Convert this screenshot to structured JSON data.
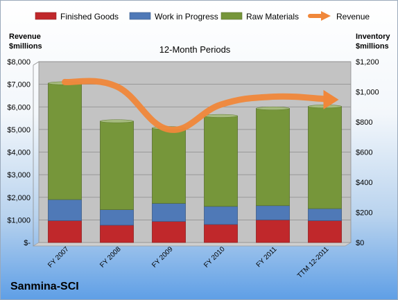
{
  "chart_data": {
    "type": "bar",
    "title": "12-Month Periods",
    "company": "Sanmina-SCI",
    "left_axis_title": [
      "Revenue",
      "$millions"
    ],
    "right_axis_title": [
      "Inventory",
      "$millions"
    ],
    "categories": [
      "FY 2007",
      "FY 2008",
      "FY 2009",
      "FY 2010",
      "FY 2011",
      "TTM 12-2011"
    ],
    "left_ylim": [
      0,
      8000
    ],
    "left_ticks": [
      0,
      1000,
      2000,
      3000,
      4000,
      5000,
      6000,
      7000,
      8000
    ],
    "left_tick_labels": [
      "$-",
      "$1,000",
      "$2,000",
      "$3,000",
      "$4,000",
      "$5,000",
      "$6,000",
      "$7,000",
      "$8,000"
    ],
    "right_ylim": [
      0,
      1200
    ],
    "right_ticks": [
      0,
      200,
      400,
      600,
      800,
      1000,
      1200
    ],
    "right_tick_labels": [
      "$0",
      "$200",
      "$400",
      "$600",
      "$800",
      "$1,000",
      "$1,200"
    ],
    "series": [
      {
        "name": "Finished Goods",
        "axis": "right",
        "color": "#c0282b",
        "values": [
          145,
          115,
          140,
          120,
          150,
          145
        ]
      },
      {
        "name": "Work in Progress",
        "axis": "right",
        "color": "#4f79b7",
        "values": [
          140,
          103,
          120,
          120,
          95,
          80
        ]
      },
      {
        "name": "Raw Materials",
        "axis": "right",
        "color": "#76963a",
        "values": [
          772,
          587,
          500,
          600,
          645,
          678
        ]
      },
      {
        "name": "Revenue",
        "axis": "left",
        "color": "#f0873a",
        "type": "line",
        "values": [
          7100,
          6900,
          5000,
          6100,
          6450,
          6350
        ]
      }
    ],
    "grid": true,
    "legend_position": "top"
  }
}
